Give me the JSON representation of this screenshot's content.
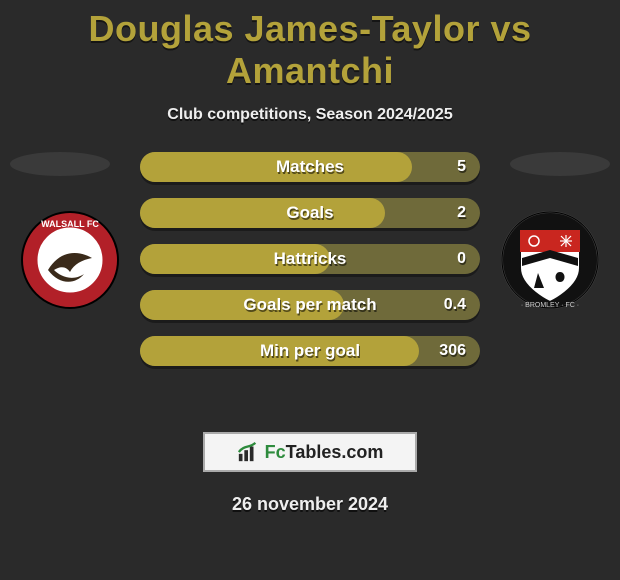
{
  "title": "Douglas James-Taylor vs Amantchi",
  "subtitle": "Club competitions, Season 2024/2025",
  "date": "26 november 2024",
  "brand": {
    "prefix": "Fc",
    "suffix": "Tables.com"
  },
  "colors": {
    "title": "#b3a23a",
    "bar_fill": "#b3a23a",
    "bar_bg": "#6f6a3a",
    "background": "#2a2a2a",
    "ellipse": "#3a3a3a",
    "brand_green": "#2e8b3d"
  },
  "bars": [
    {
      "label": "Matches",
      "value": "5",
      "fill_pct": 80
    },
    {
      "label": "Goals",
      "value": "2",
      "fill_pct": 72
    },
    {
      "label": "Hattricks",
      "value": "0",
      "fill_pct": 56
    },
    {
      "label": "Goals per match",
      "value": "0.4",
      "fill_pct": 60
    },
    {
      "label": "Min per goal",
      "value": "306",
      "fill_pct": 82
    }
  ],
  "crest_left": {
    "name": "Walsall FC",
    "ring_color": "#b22028",
    "inner_bg": "#ffffff",
    "text_color": "#ffffff"
  },
  "crest_right": {
    "name": "Bromley FC",
    "frame_color": "#1a1a1a",
    "top_color": "#c9261f",
    "bottom_color": "#ffffff"
  }
}
